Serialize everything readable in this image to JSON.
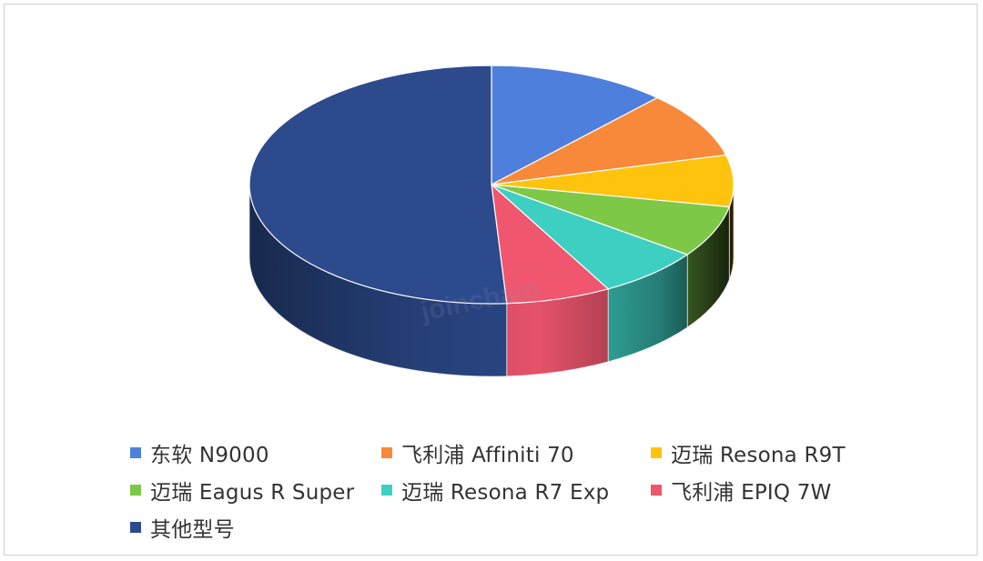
{
  "chart_data": {
    "type": "pie",
    "title": "",
    "watermark": "joinchain",
    "slices": [
      {
        "label": "东软 N9000",
        "value": 12,
        "color": "#4f7fdc"
      },
      {
        "label": "飞利浦 Affiniti 70",
        "value": 9,
        "color": "#f8893a"
      },
      {
        "label": "迈瑞 Resona R9T",
        "value": 7,
        "color": "#fec40d"
      },
      {
        "label": "迈瑞 Eagus R Super",
        "value": 7,
        "color": "#7ec848"
      },
      {
        "label": "迈瑞 Resona R7 Exp",
        "value": 7,
        "color": "#3ecfc3"
      },
      {
        "label": "飞利浦 EPIQ 7W",
        "value": 7,
        "color": "#f0566e"
      },
      {
        "label": "其他型号",
        "value": 51,
        "color": "#2c4a8c"
      }
    ],
    "legend_position": "bottom"
  }
}
